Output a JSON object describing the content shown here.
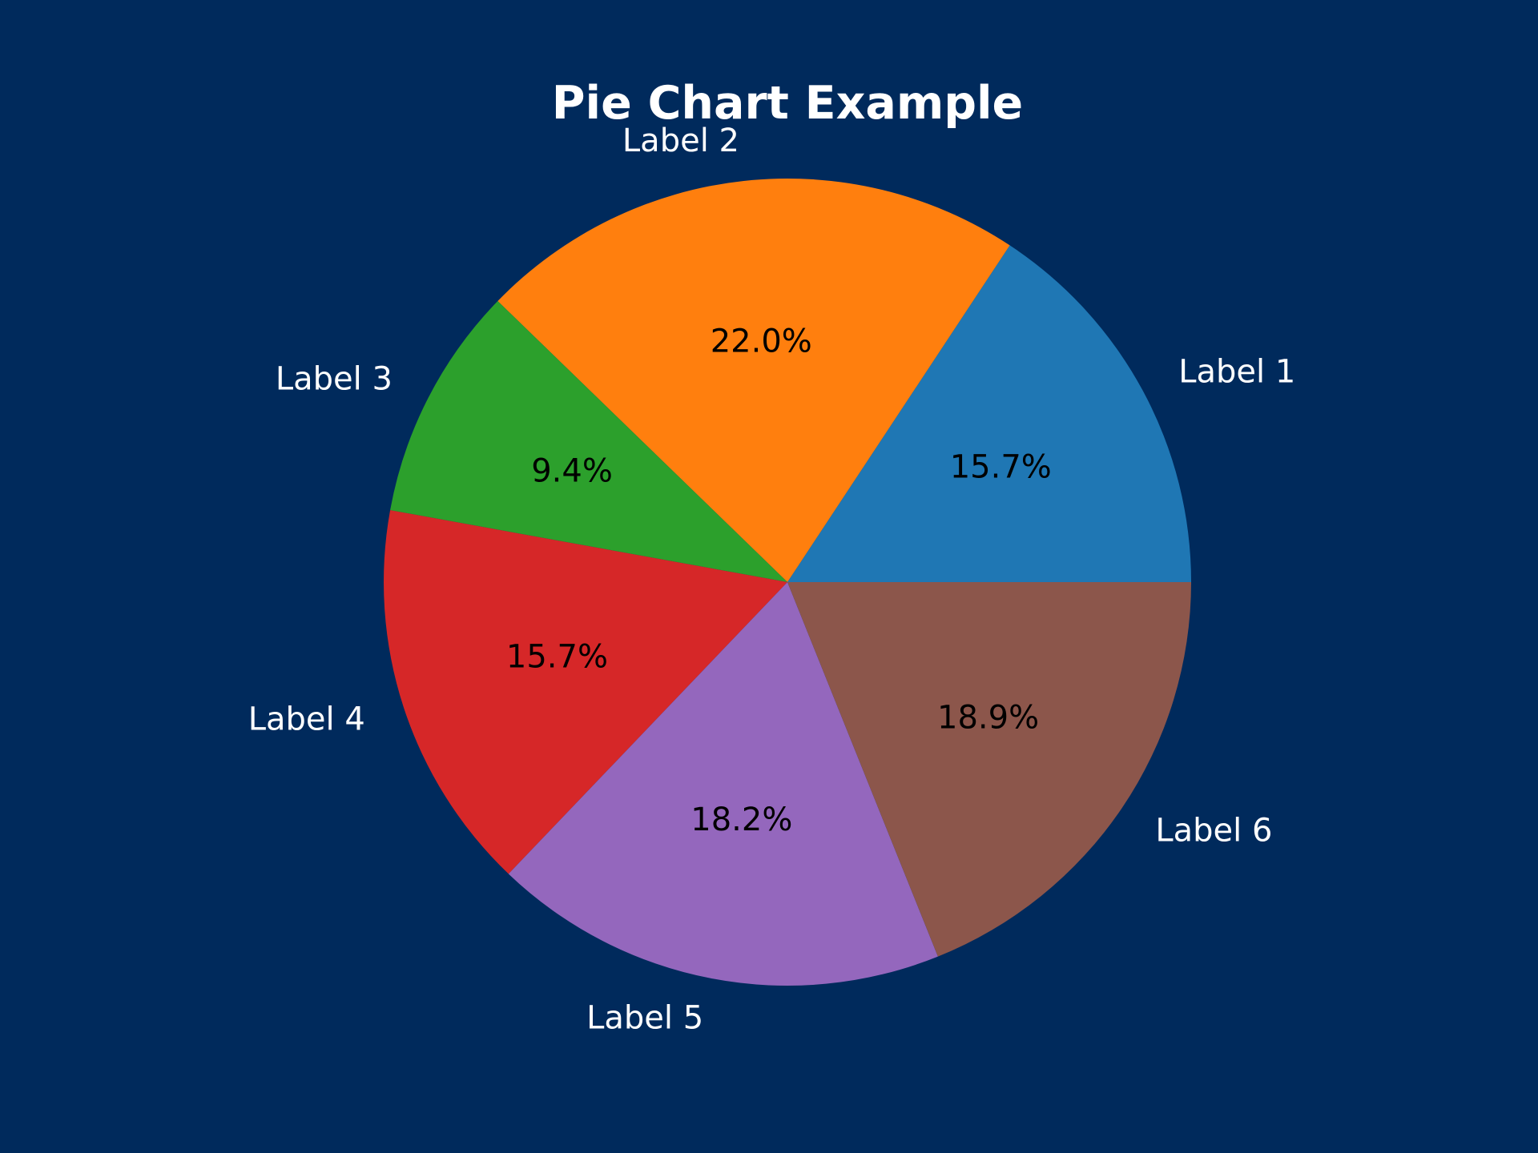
{
  "chart_data": {
    "type": "pie",
    "title": "Pie Chart Example",
    "start_angle_deg": 0,
    "direction": "counterclockwise",
    "background_color": "#002a5c",
    "slices": [
      {
        "label": "Label 1",
        "value": 15.7,
        "pct_text": "15.7%",
        "color": "#1f77b4"
      },
      {
        "label": "Label 2",
        "value": 22.0,
        "pct_text": "22.0%",
        "color": "#ff7f0e"
      },
      {
        "label": "Label 3",
        "value": 9.4,
        "pct_text": "9.4%",
        "color": "#2ca02c"
      },
      {
        "label": "Label 4",
        "value": 15.7,
        "pct_text": "15.7%",
        "color": "#d62728"
      },
      {
        "label": "Label 5",
        "value": 18.2,
        "pct_text": "18.2%",
        "color": "#9467bd"
      },
      {
        "label": "Label 6",
        "value": 18.9,
        "pct_text": "18.9%",
        "color": "#8c564b"
      }
    ]
  }
}
